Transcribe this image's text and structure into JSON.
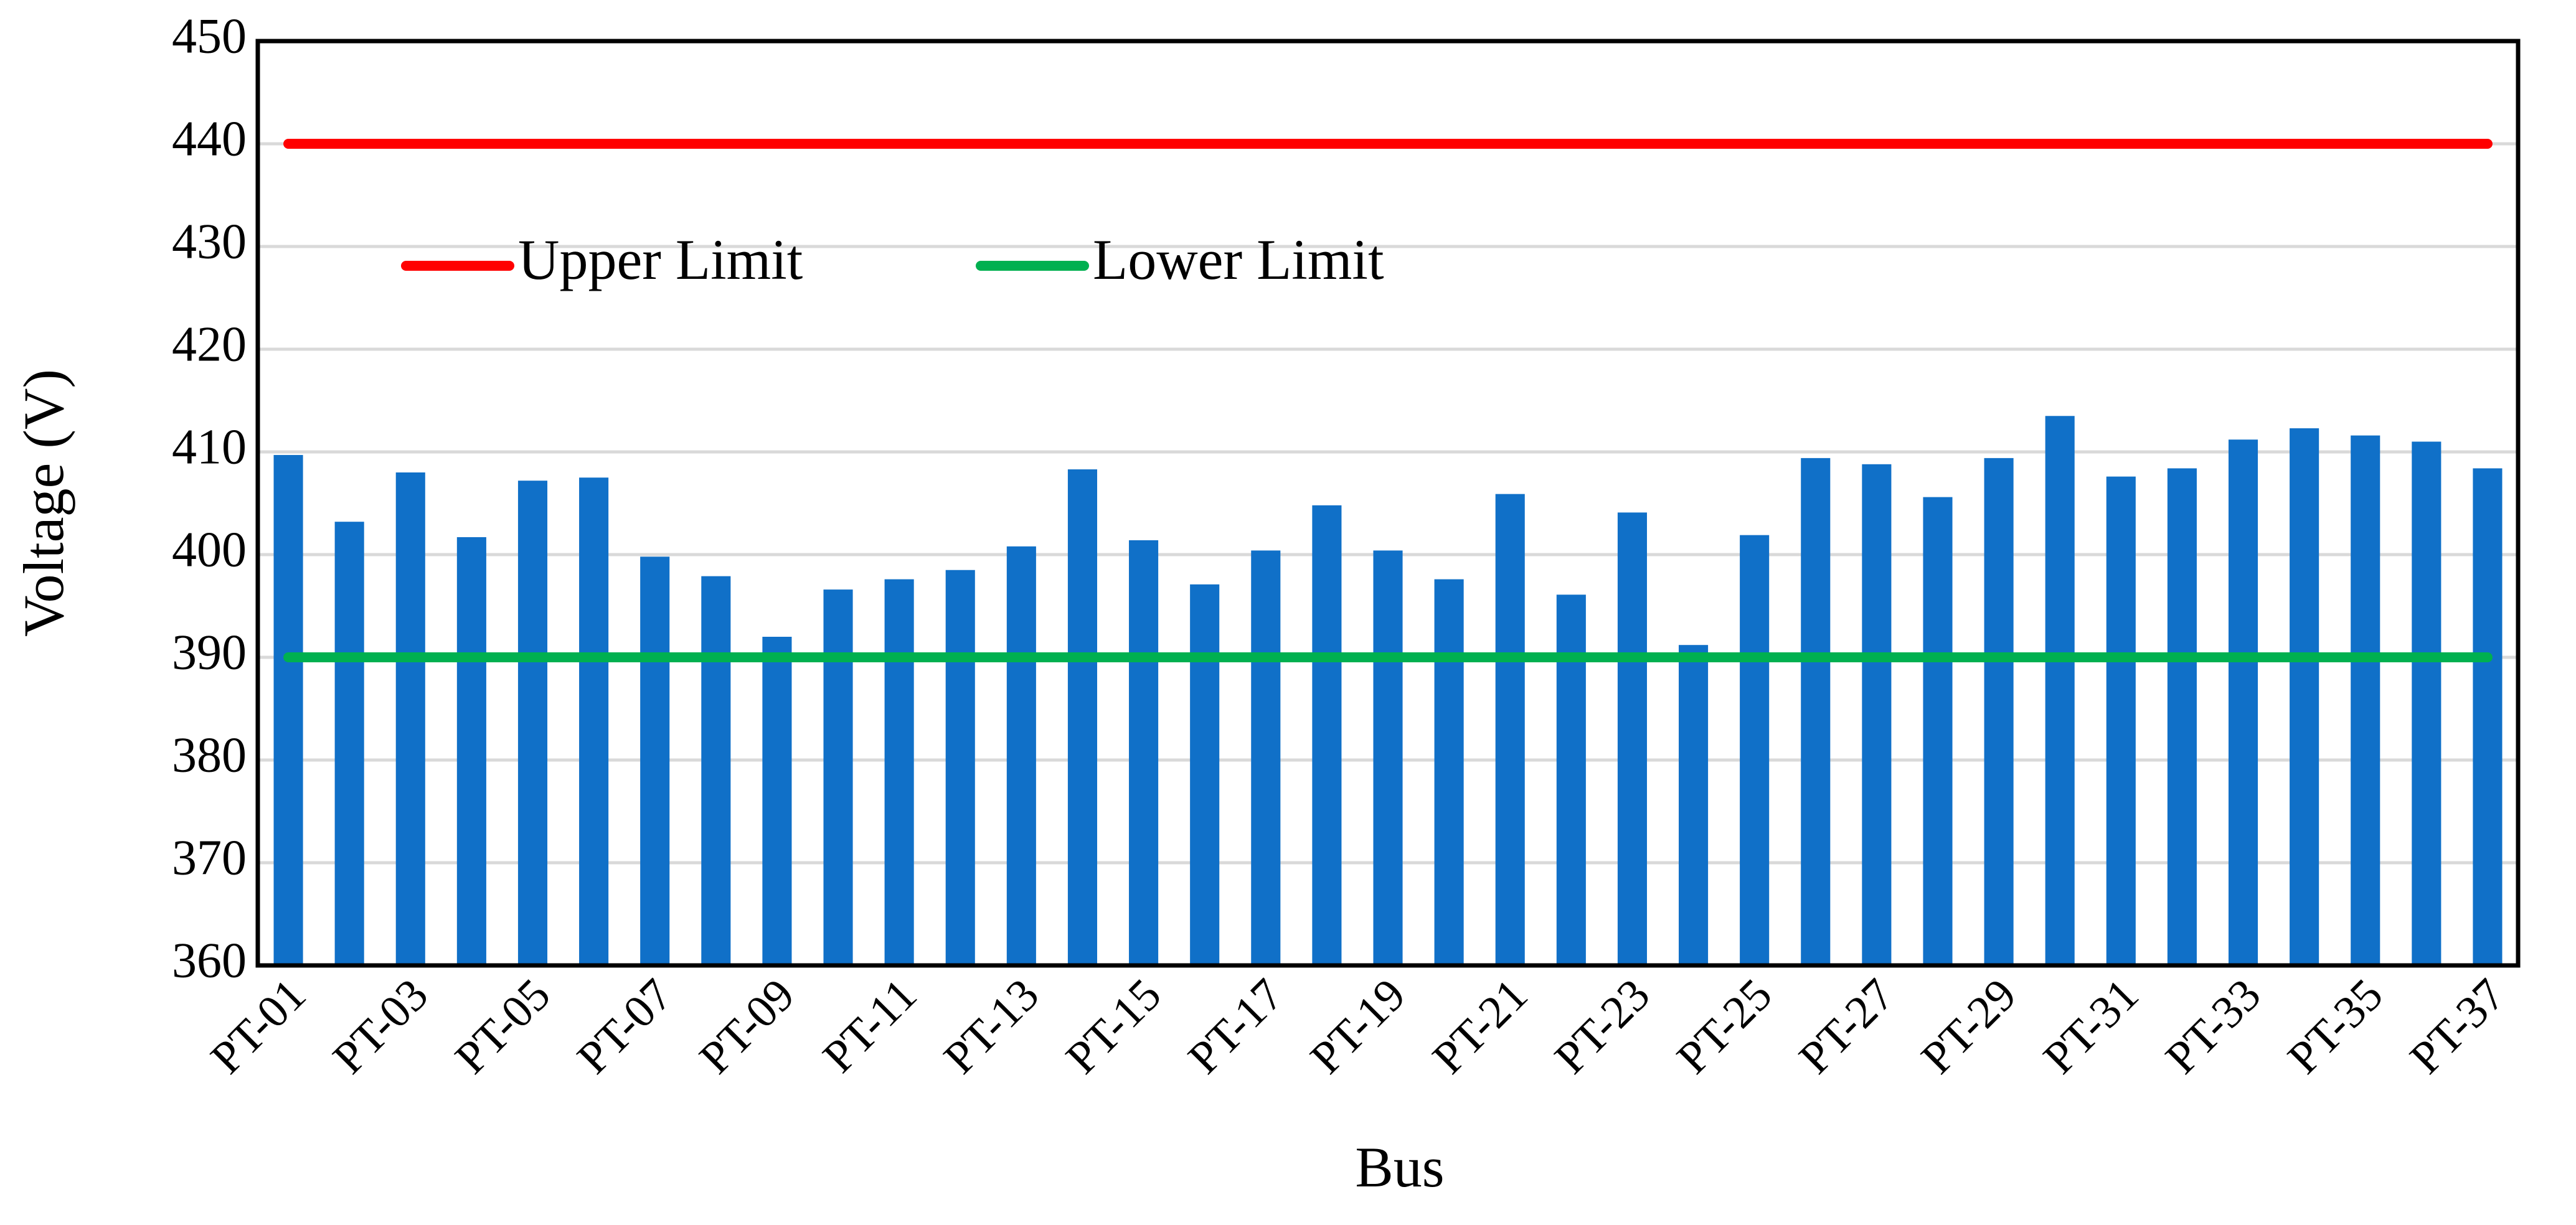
{
  "chart_data": {
    "type": "bar",
    "x_label": "Bus",
    "y_label": "Voltage (V)",
    "categories": [
      "PT-01",
      null,
      "PT-03",
      null,
      "PT-05",
      null,
      "PT-07",
      null,
      "PT-09",
      null,
      "PT-11",
      null,
      "PT-13",
      null,
      "PT-15",
      null,
      "PT-17",
      null,
      "PT-19",
      null,
      "PT-21",
      null,
      "PT-23",
      null,
      "PT-25",
      null,
      "PT-27",
      null,
      "PT-29",
      null,
      "PT-31",
      null,
      "PT-33",
      null,
      "PT-35",
      null,
      "PT-37"
    ],
    "values": [
      409.7,
      403.2,
      408,
      401.7,
      407.2,
      407.5,
      399.8,
      397.9,
      392,
      396.6,
      397.6,
      398.5,
      400.8,
      408.3,
      401.4,
      397.1,
      400.4,
      404.8,
      400.4,
      397.6,
      405.9,
      396.1,
      404.1,
      391.2,
      401.9,
      409.4,
      408.8,
      405.6,
      409.4,
      413.5,
      407.6,
      408.4,
      411.2,
      412.3,
      411.6,
      411,
      408.4
    ],
    "color": "#1070c8",
    "lines": [
      {
        "name": "Upper Limit",
        "color": "#ff0000",
        "value": 440
      },
      {
        "name": "Lower Limit",
        "color": "#00b050",
        "value": 390
      }
    ],
    "ylim": [
      360,
      450
    ],
    "yticks": [
      360,
      370,
      380,
      390,
      400,
      410,
      420,
      430,
      440,
      450
    ],
    "grid": true
  }
}
